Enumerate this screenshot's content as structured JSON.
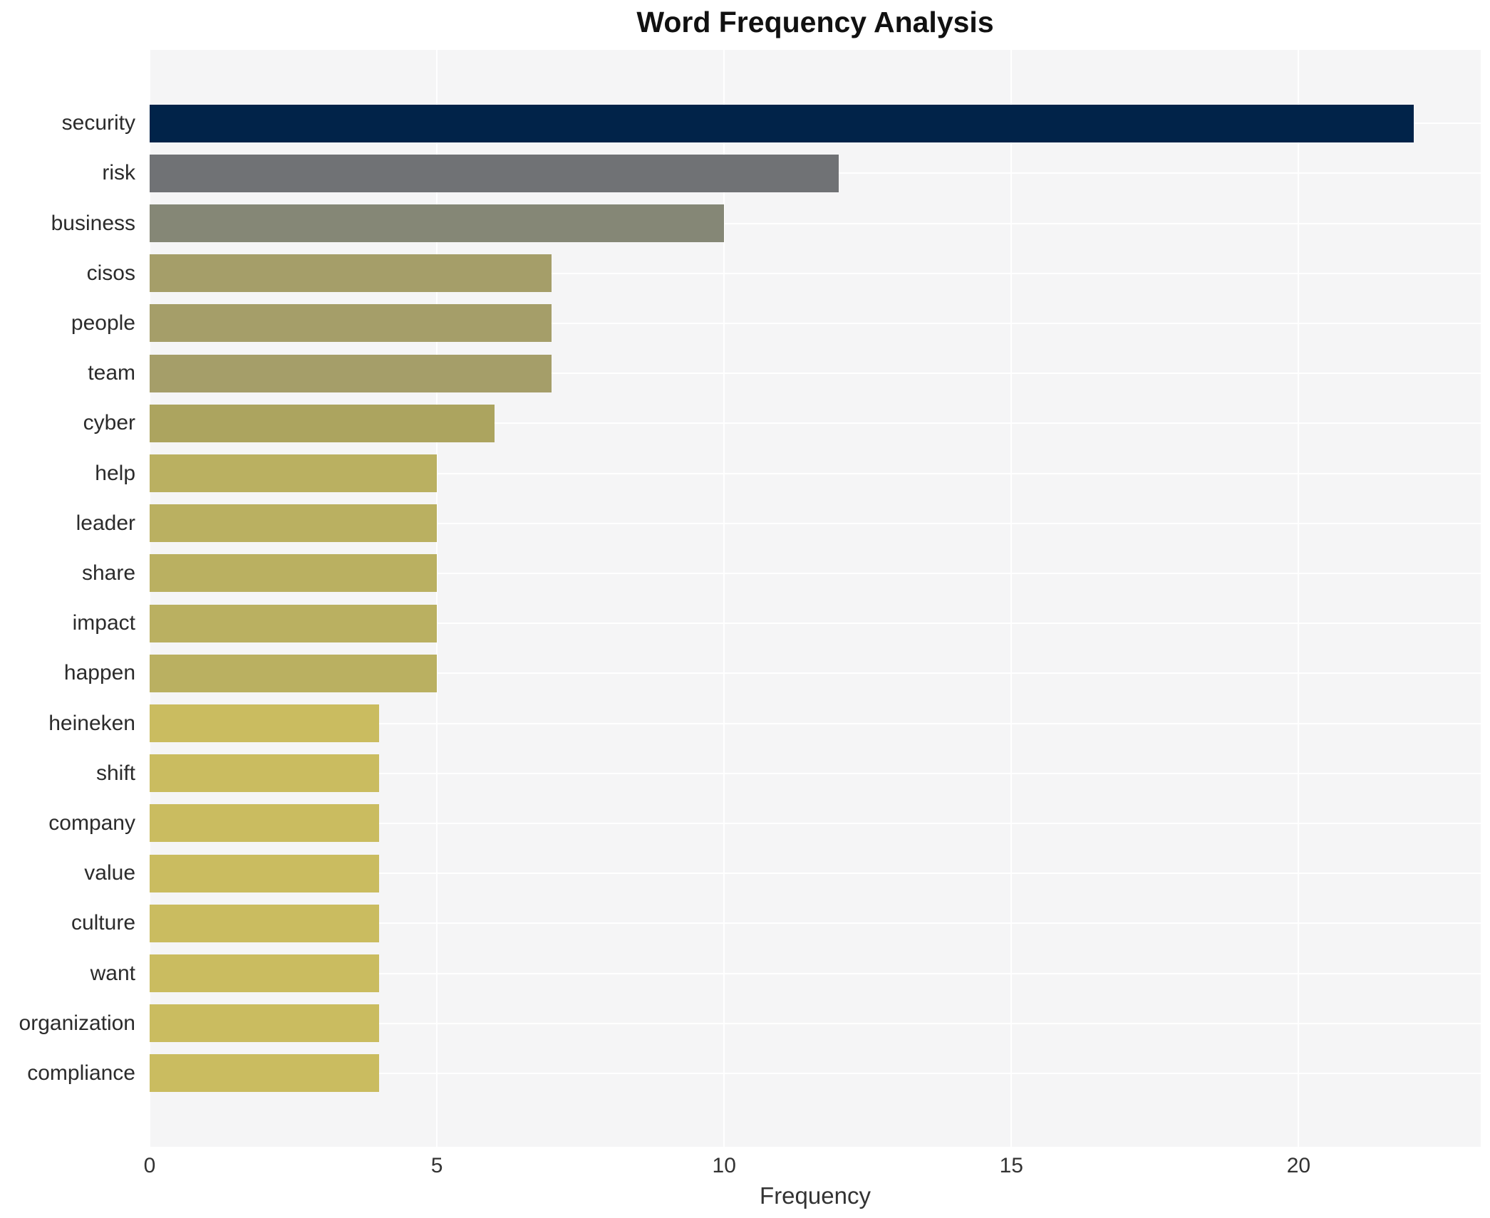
{
  "title": "Word Frequency Analysis",
  "chart_data": {
    "type": "bar",
    "orientation": "horizontal",
    "title": "Word Frequency Analysis",
    "xlabel": "Frequency",
    "ylabel": "",
    "categories": [
      "security",
      "risk",
      "business",
      "cisos",
      "people",
      "team",
      "cyber",
      "help",
      "leader",
      "share",
      "impact",
      "happen",
      "heineken",
      "shift",
      "company",
      "value",
      "culture",
      "want",
      "organization",
      "compliance"
    ],
    "values": [
      22,
      12,
      10,
      7,
      7,
      7,
      6,
      5,
      5,
      5,
      5,
      5,
      4,
      4,
      4,
      4,
      4,
      4,
      4,
      4
    ],
    "bar_colors": [
      "#012349",
      "#707275",
      "#858776",
      "#a59e69",
      "#a59e69",
      "#a59e69",
      "#aca45f",
      "#bab061",
      "#bab061",
      "#bab061",
      "#bab061",
      "#bab061",
      "#cabc60",
      "#cabc60",
      "#cabc60",
      "#cabc60",
      "#cabc60",
      "#cabc60",
      "#cabc60",
      "#cabc60"
    ],
    "xlim": [
      0,
      23.17
    ],
    "xticks": [
      0,
      5,
      10,
      15,
      20
    ],
    "grid": true,
    "legend": false,
    "plot_bg_color": "#f5f5f6",
    "gridline_color": "#ffffff",
    "label_color": "#2b2b2b",
    "title_color": "#111111"
  }
}
